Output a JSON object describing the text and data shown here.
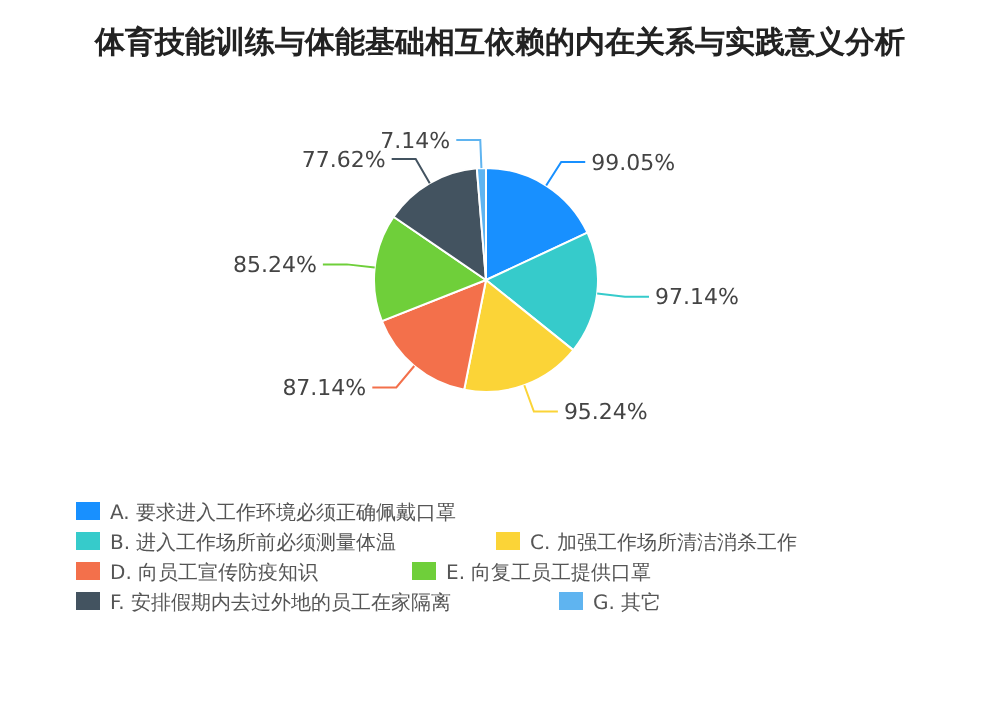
{
  "chart_data": {
    "type": "pie",
    "title": "体育技能训练与体能基础相互依赖的内在关系与实践意义分析",
    "categories": [
      "A. 要求进入工作环境必须正确佩戴口罩",
      "B. 进入工作场所前必须测量体温",
      "C. 加强工作场所清洁消杀工作",
      "D. 向员工宣传防疫知识",
      "E. 向复工员工提供口罩",
      "F. 安排假期内去过外地的员工在家隔离",
      "G. 其它"
    ],
    "values": [
      99.05,
      97.14,
      95.24,
      87.14,
      85.24,
      77.62,
      7.14
    ],
    "value_labels": [
      "99.05%",
      "97.14%",
      "95.24%",
      "87.14%",
      "85.24%",
      "77.62%",
      "7.14%"
    ],
    "colors": [
      "#1890ff",
      "#36cbcb",
      "#fbd437",
      "#f3704b",
      "#6fcf3a",
      "#435360",
      "#5fb4f0"
    ],
    "legend": "bottom"
  }
}
